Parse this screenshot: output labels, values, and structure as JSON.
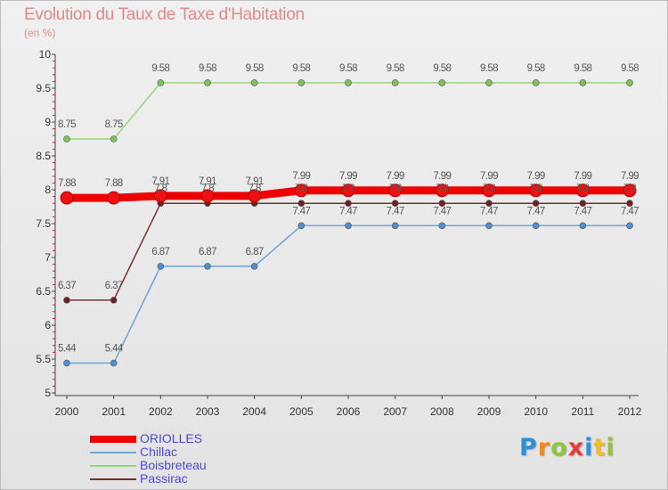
{
  "title": "Evolution du Taux de Taxe d'Habitation",
  "subtitle": "(en %)",
  "colors": {
    "title": "#e08a8a",
    "axis": "#444444",
    "tick_red": "#cc2222",
    "label": "#555555",
    "legend_text": "#4a4ad8"
  },
  "logo": {
    "text": "Proxiti",
    "letter_colors": [
      "#2f8fd8",
      "#f28a22",
      "#8cc63f",
      "#e23b3b",
      "#2f8fd8",
      "#f2c022",
      "#8cc63f"
    ]
  },
  "chart_data": {
    "type": "line",
    "x": [
      "2000",
      "2001",
      "2002",
      "2003",
      "2004",
      "2005",
      "2006",
      "2007",
      "2008",
      "2009",
      "2010",
      "2011",
      "2012"
    ],
    "ylim": [
      5,
      10
    ],
    "yticks": [
      "5",
      "5.5",
      "6",
      "6.5",
      "7",
      "7.5",
      "8",
      "8.5",
      "9",
      "9.5",
      "10"
    ],
    "ytick_values": [
      5,
      5.5,
      6,
      6.5,
      7,
      7.5,
      8,
      8.5,
      9,
      9.5,
      10
    ],
    "grid": false,
    "legend_position": "bottom-left",
    "series": [
      {
        "name": "ORIOLLES",
        "values": [
          7.88,
          7.88,
          7.91,
          7.91,
          7.91,
          7.99,
          7.99,
          7.99,
          7.99,
          7.99,
          7.99,
          7.99,
          7.99
        ],
        "labels": [
          "7.88",
          "7.88",
          "7.91",
          "7.91",
          "7.91",
          "7.99",
          "7.99",
          "7.99",
          "7.99",
          "7.99",
          "7.99",
          "7.99",
          "7.99"
        ],
        "color": "#ee0000",
        "marker_color": "#d40000",
        "emphasis": "thick"
      },
      {
        "name": "Chillac",
        "values": [
          5.44,
          5.44,
          6.87,
          6.87,
          6.87,
          7.47,
          7.47,
          7.47,
          7.47,
          7.47,
          7.47,
          7.47,
          7.47
        ],
        "labels": [
          "5.44",
          "5.44",
          "6.87",
          "6.87",
          "6.87",
          "7.47",
          "7.47",
          "7.47",
          "7.47",
          "7.47",
          "7.47",
          "7.47",
          "7.47"
        ],
        "color": "#6fa4d4",
        "marker_color": "#4f8fcf",
        "emphasis": "normal"
      },
      {
        "name": "Boisbreteau",
        "values": [
          8.75,
          8.75,
          9.58,
          9.58,
          9.58,
          9.58,
          9.58,
          9.58,
          9.58,
          9.58,
          9.58,
          9.58,
          9.58
        ],
        "labels": [
          "8.75",
          "8.75",
          "9.58",
          "9.58",
          "9.58",
          "9.58",
          "9.58",
          "9.58",
          "9.58",
          "9.58",
          "9.58",
          "9.58",
          "9.58"
        ],
        "color": "#98d67a",
        "marker_color": "#7cc35a",
        "emphasis": "normal"
      },
      {
        "name": "Passirac",
        "values": [
          6.37,
          6.37,
          7.8,
          7.8,
          7.8,
          7.8,
          7.8,
          7.8,
          7.8,
          7.8,
          7.8,
          7.8,
          7.8
        ],
        "labels": [
          "6.37",
          "6.37",
          "7.8",
          "7.8",
          "7.8",
          "7.8",
          "7.8",
          "7.8",
          "7.8",
          "7.8",
          "7.8",
          "7.8",
          "7.8"
        ],
        "color": "#7a3030",
        "marker_color": "#6a2222",
        "emphasis": "normal"
      }
    ]
  }
}
